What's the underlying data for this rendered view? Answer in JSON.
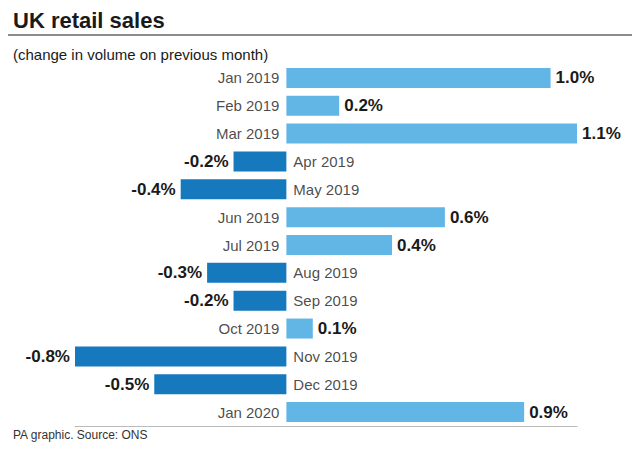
{
  "chart_data": {
    "type": "bar",
    "title": "UK retail sales",
    "subtitle": "(change in volume on previous month)",
    "source": "PA graphic. Source: ONS",
    "orientation": "horizontal",
    "categories": [
      "Jan 2019",
      "Feb 2019",
      "Mar 2019",
      "Apr 2019",
      "May 2019",
      "Jun 2019",
      "Jul 2019",
      "Aug 2019",
      "Sep 2019",
      "Oct 2019",
      "Nov 2019",
      "Dec 2019",
      "Jan 2020"
    ],
    "values": [
      1.0,
      0.2,
      1.1,
      -0.2,
      -0.4,
      0.6,
      0.4,
      -0.3,
      -0.2,
      0.1,
      -0.8,
      -0.5,
      0.9
    ],
    "value_labels": [
      "1.0%",
      "0.2%",
      "1.1%",
      "-0.2%",
      "-0.4%",
      "0.6%",
      "0.4%",
      "-0.3%",
      "-0.2%",
      "0.1%",
      "-0.8%",
      "-0.5%",
      "0.9%"
    ],
    "colors": [
      "#62b6e6",
      "#62b6e6",
      "#62b6e6",
      "#1679be",
      "#1679be",
      "#62b6e6",
      "#62b6e6",
      "#1679be",
      "#1679be",
      "#62b6e6",
      "#1679be",
      "#1679be",
      "#62b6e6"
    ],
    "xlim": [
      -0.8,
      1.1
    ],
    "data_labels": true,
    "tick_labels": "y",
    "grid": false
  }
}
